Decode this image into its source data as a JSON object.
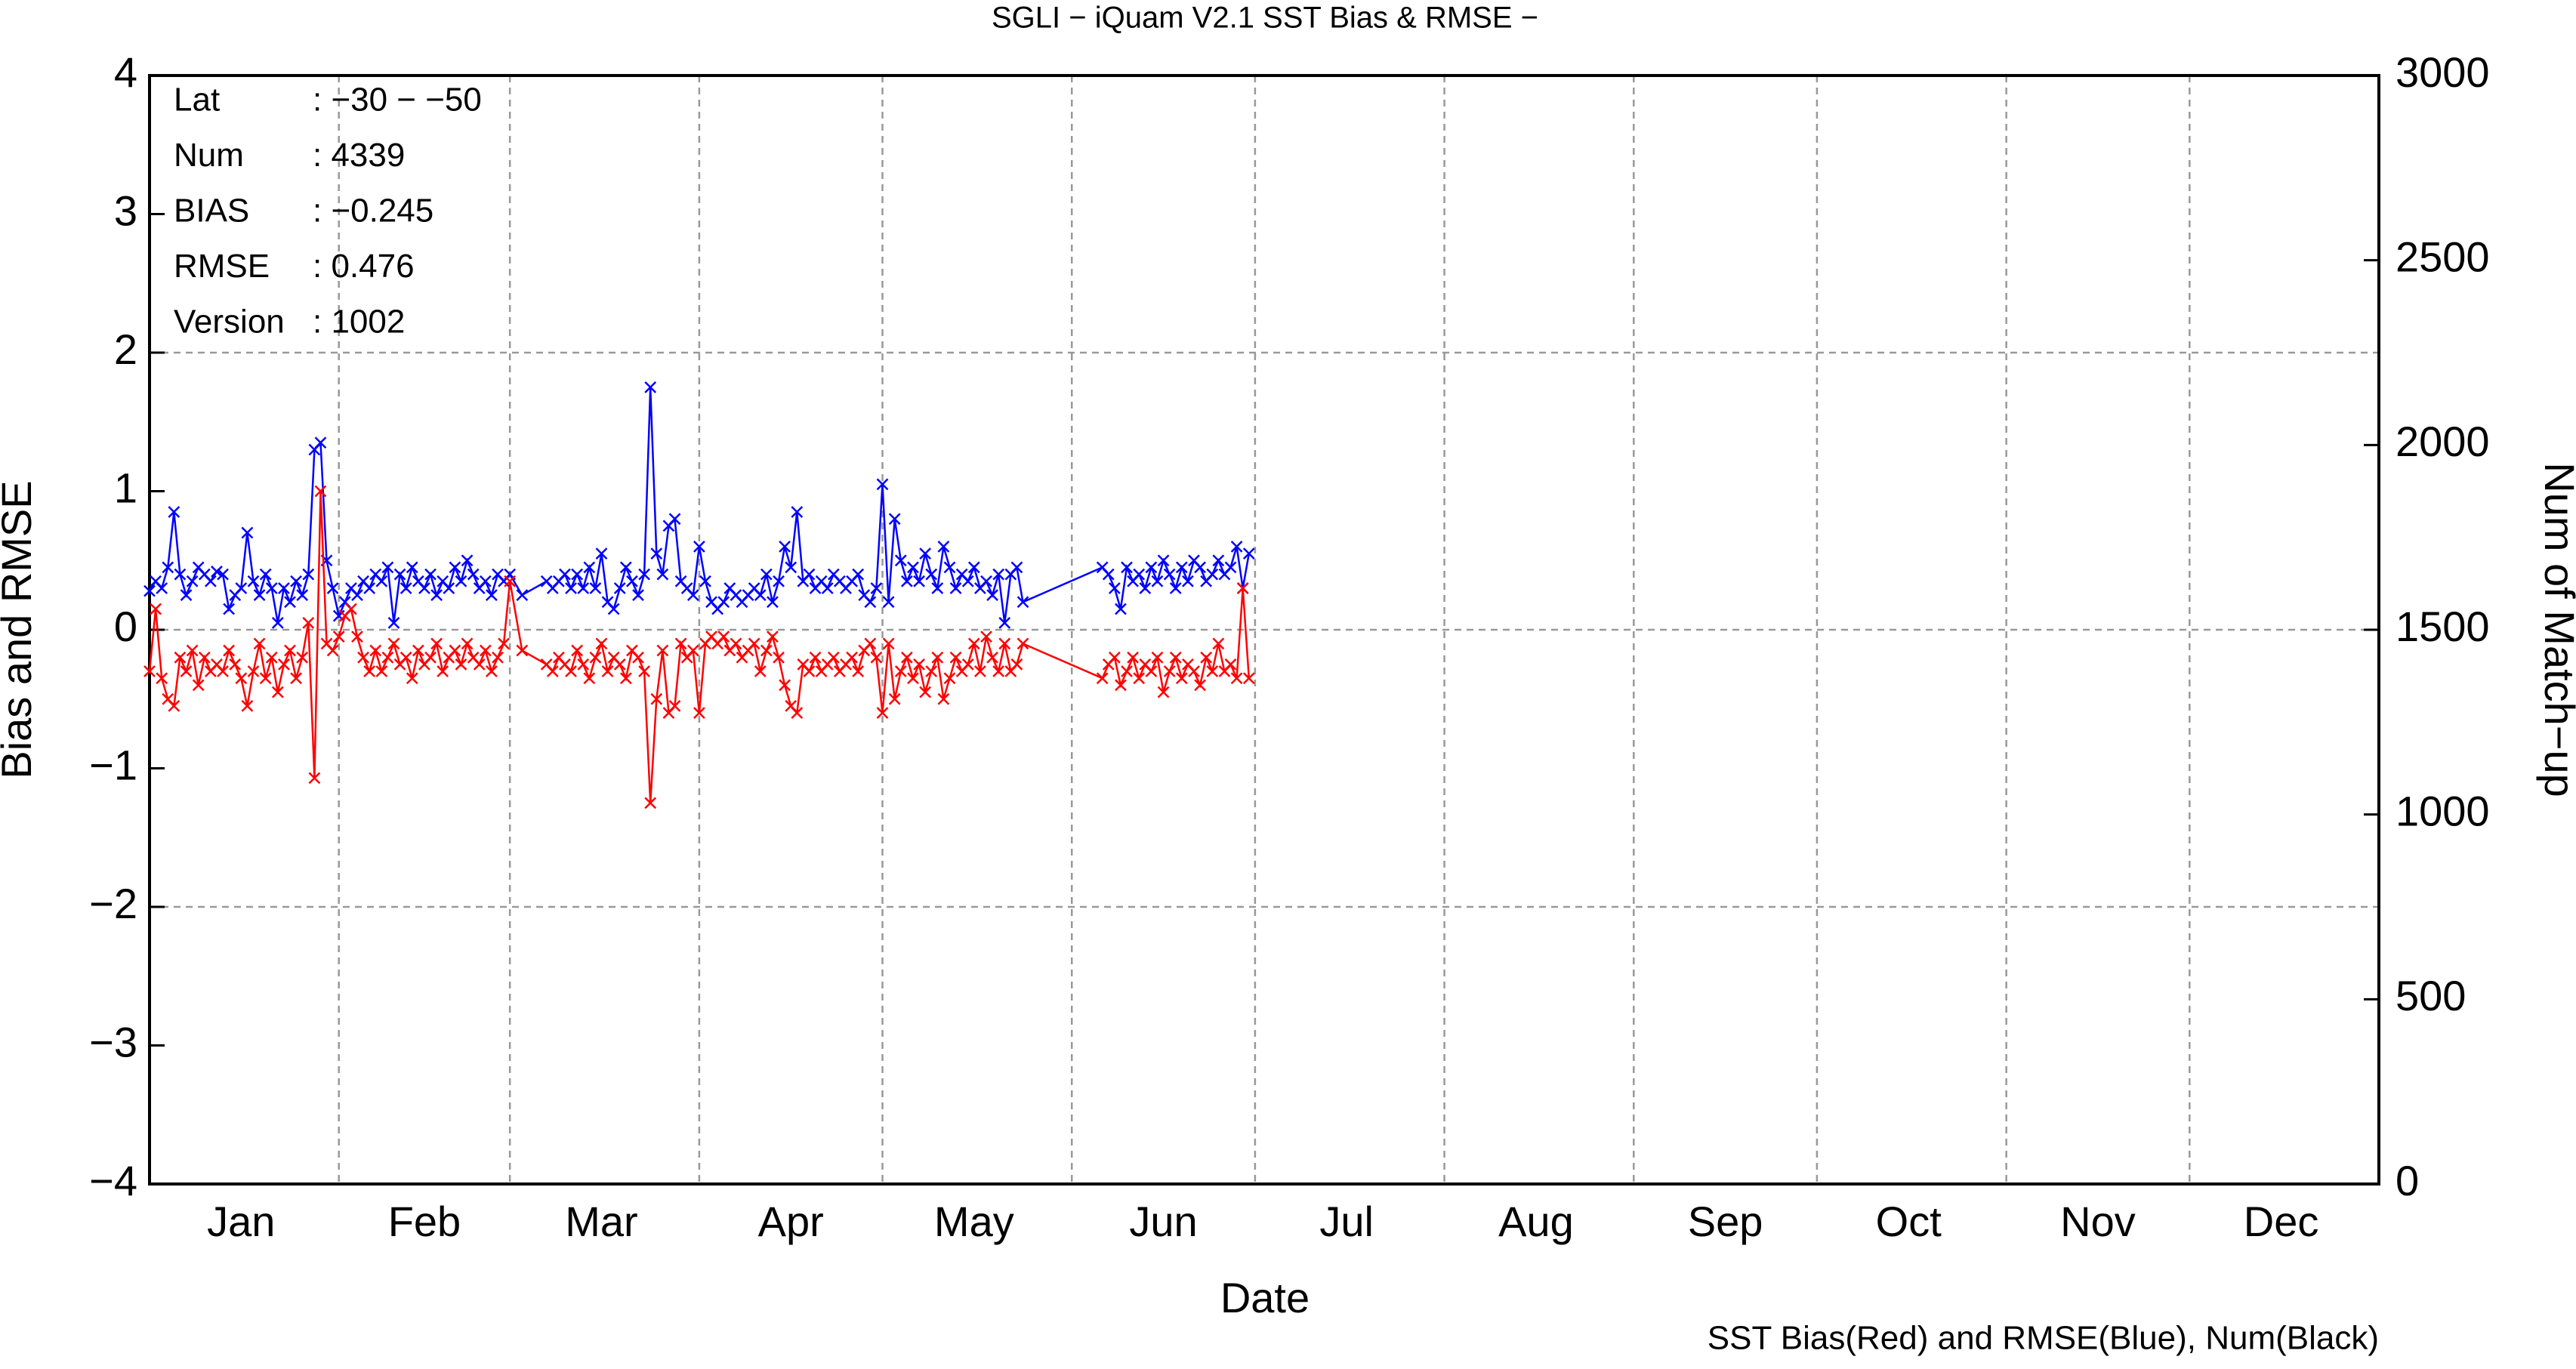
{
  "chart_data": {
    "type": "line",
    "title": "SGLI − iQuam V2.1 SST Bias & RMSE  −",
    "x_label": "Date",
    "y_label": "Bias and RMSE",
    "y2_label": "Num of Match−up",
    "note": "SST Bias(Red) and RMSE(Blue), Num(Black)",
    "stats": [
      {
        "label": "Lat",
        "value": ": −30 − −50"
      },
      {
        "label": "Num",
        "value": ": 4339"
      },
      {
        "label": "BIAS",
        "value": ": −0.245"
      },
      {
        "label": "RMSE",
        "value": ": 0.476"
      },
      {
        "label": "Version",
        "value": ": 1002"
      }
    ],
    "xlim": [
      1,
      366
    ],
    "xticks": [
      {
        "value": 16,
        "label": "Jan"
      },
      {
        "value": 46,
        "label": "Feb"
      },
      {
        "value": 75,
        "label": "Mar"
      },
      {
        "value": 106,
        "label": "Apr"
      },
      {
        "value": 136,
        "label": "May"
      },
      {
        "value": 167,
        "label": "Jun"
      },
      {
        "value": 197,
        "label": "Jul"
      },
      {
        "value": 228,
        "label": "Aug"
      },
      {
        "value": 259,
        "label": "Sep"
      },
      {
        "value": 289,
        "label": "Oct"
      },
      {
        "value": 320,
        "label": "Nov"
      },
      {
        "value": 350,
        "label": "Dec"
      }
    ],
    "xgrid": [
      32,
      60,
      91,
      121,
      152,
      182,
      213,
      244,
      274,
      305,
      335
    ],
    "ylim": [
      -4,
      4
    ],
    "yticks": [
      {
        "value": -4,
        "label": "−4"
      },
      {
        "value": -3,
        "label": "−3"
      },
      {
        "value": -2,
        "label": "−2"
      },
      {
        "value": -1,
        "label": "−1"
      },
      0,
      1,
      2,
      3,
      4
    ],
    "ygrid": [
      -2,
      0,
      2
    ],
    "y2lim": [
      0,
      3000
    ],
    "y2ticks": [
      0,
      500,
      1000,
      1500,
      2000,
      2500,
      3000
    ],
    "grid": true,
    "x": [
      1,
      2,
      3,
      4,
      5,
      6,
      7,
      8,
      9,
      10,
      11,
      12,
      13,
      14,
      15,
      16,
      17,
      18,
      19,
      20,
      21,
      22,
      23,
      24,
      25,
      26,
      27,
      28,
      29,
      30,
      31,
      32,
      33,
      34,
      35,
      36,
      37,
      38,
      39,
      40,
      41,
      42,
      43,
      44,
      45,
      46,
      47,
      48,
      49,
      50,
      51,
      52,
      53,
      54,
      55,
      56,
      57,
      58,
      59,
      60,
      62,
      66,
      67,
      68,
      69,
      70,
      71,
      72,
      73,
      74,
      75,
      76,
      77,
      78,
      79,
      80,
      81,
      82,
      83,
      84,
      85,
      86,
      87,
      88,
      89,
      90,
      91,
      92,
      93,
      94,
      95,
      96,
      97,
      98,
      99,
      100,
      101,
      102,
      103,
      104,
      105,
      106,
      107,
      108,
      109,
      110,
      111,
      112,
      113,
      114,
      115,
      116,
      117,
      118,
      119,
      120,
      121,
      122,
      123,
      124,
      125,
      126,
      127,
      128,
      129,
      130,
      131,
      132,
      133,
      134,
      135,
      136,
      137,
      138,
      139,
      140,
      141,
      142,
      143,
      144,
      157,
      158,
      159,
      160,
      161,
      162,
      163,
      164,
      165,
      166,
      167,
      168,
      169,
      170,
      171,
      172,
      173,
      174,
      175,
      176,
      177,
      178,
      179,
      180,
      181
    ],
    "series": [
      {
        "color": "#0000ff",
        "values": [
          0.28,
          0.35,
          0.3,
          0.45,
          0.85,
          0.4,
          0.25,
          0.35,
          0.45,
          0.4,
          0.35,
          0.42,
          0.4,
          0.15,
          0.25,
          0.3,
          0.7,
          0.35,
          0.25,
          0.4,
          0.3,
          0.05,
          0.3,
          0.2,
          0.35,
          0.25,
          0.4,
          1.3,
          1.35,
          0.5,
          0.3,
          0.1,
          0.2,
          0.3,
          0.25,
          0.35,
          0.3,
          0.4,
          0.35,
          0.45,
          0.05,
          0.4,
          0.3,
          0.45,
          0.35,
          0.3,
          0.4,
          0.25,
          0.35,
          0.3,
          0.45,
          0.35,
          0.5,
          0.4,
          0.3,
          0.35,
          0.25,
          0.4,
          0.35,
          0.4,
          0.25,
          0.35,
          0.3,
          0.35,
          0.4,
          0.3,
          0.4,
          0.3,
          0.45,
          0.3,
          0.55,
          0.2,
          0.15,
          0.3,
          0.45,
          0.35,
          0.25,
          0.4,
          1.75,
          0.55,
          0.4,
          0.75,
          0.8,
          0.35,
          0.3,
          0.25,
          0.6,
          0.35,
          0.2,
          0.15,
          0.2,
          0.3,
          0.25,
          0.2,
          0.25,
          0.3,
          0.25,
          0.4,
          0.2,
          0.35,
          0.6,
          0.45,
          0.85,
          0.35,
          0.4,
          0.3,
          0.35,
          0.3,
          0.4,
          0.35,
          0.3,
          0.35,
          0.4,
          0.25,
          0.2,
          0.3,
          1.05,
          0.2,
          0.8,
          0.5,
          0.35,
          0.45,
          0.35,
          0.55,
          0.4,
          0.3,
          0.6,
          0.45,
          0.3,
          0.4,
          0.35,
          0.45,
          0.3,
          0.35,
          0.25,
          0.4,
          0.05,
          0.4,
          0.45,
          0.2,
          0.45,
          0.4,
          0.3,
          0.15,
          0.45,
          0.35,
          0.4,
          0.3,
          0.45,
          0.35,
          0.5,
          0.4,
          0.3,
          0.45,
          0.35,
          0.5,
          0.45,
          0.35,
          0.4,
          0.5,
          0.4,
          0.45,
          0.6,
          0.3,
          0.55
        ]
      },
      {
        "color": "#ff0000",
        "values": [
          -0.3,
          0.15,
          -0.35,
          -0.5,
          -0.55,
          -0.2,
          -0.3,
          -0.15,
          -0.4,
          -0.2,
          -0.3,
          -0.25,
          -0.3,
          -0.15,
          -0.25,
          -0.35,
          -0.55,
          -0.3,
          -0.1,
          -0.35,
          -0.2,
          -0.45,
          -0.25,
          -0.15,
          -0.35,
          -0.2,
          0.05,
          -1.07,
          1.0,
          -0.1,
          -0.15,
          -0.05,
          0.1,
          0.15,
          -0.05,
          -0.2,
          -0.3,
          -0.15,
          -0.3,
          -0.2,
          -0.1,
          -0.25,
          -0.2,
          -0.35,
          -0.15,
          -0.25,
          -0.2,
          -0.1,
          -0.3,
          -0.2,
          -0.15,
          -0.25,
          -0.1,
          -0.2,
          -0.25,
          -0.15,
          -0.3,
          -0.2,
          -0.1,
          0.35,
          -0.15,
          -0.25,
          -0.3,
          -0.2,
          -0.25,
          -0.3,
          -0.15,
          -0.25,
          -0.35,
          -0.2,
          -0.1,
          -0.3,
          -0.2,
          -0.25,
          -0.35,
          -0.15,
          -0.2,
          -0.3,
          -1.25,
          -0.5,
          -0.15,
          -0.6,
          -0.55,
          -0.1,
          -0.2,
          -0.15,
          -0.6,
          -0.1,
          -0.05,
          -0.1,
          -0.05,
          -0.15,
          -0.1,
          -0.2,
          -0.15,
          -0.1,
          -0.3,
          -0.15,
          -0.05,
          -0.2,
          -0.4,
          -0.55,
          -0.6,
          -0.25,
          -0.3,
          -0.2,
          -0.3,
          -0.25,
          -0.2,
          -0.3,
          -0.25,
          -0.2,
          -0.3,
          -0.15,
          -0.1,
          -0.2,
          -0.6,
          -0.1,
          -0.5,
          -0.3,
          -0.2,
          -0.35,
          -0.25,
          -0.45,
          -0.3,
          -0.2,
          -0.5,
          -0.35,
          -0.2,
          -0.3,
          -0.25,
          -0.1,
          -0.3,
          -0.05,
          -0.2,
          -0.3,
          -0.1,
          -0.3,
          -0.25,
          -0.1,
          -0.35,
          -0.25,
          -0.2,
          -0.4,
          -0.3,
          -0.2,
          -0.35,
          -0.25,
          -0.3,
          -0.2,
          -0.45,
          -0.3,
          -0.2,
          -0.35,
          -0.25,
          -0.3,
          -0.4,
          -0.2,
          -0.3,
          -0.1,
          -0.3,
          -0.25,
          -0.35,
          0.3,
          -0.35
        ]
      }
    ]
  }
}
